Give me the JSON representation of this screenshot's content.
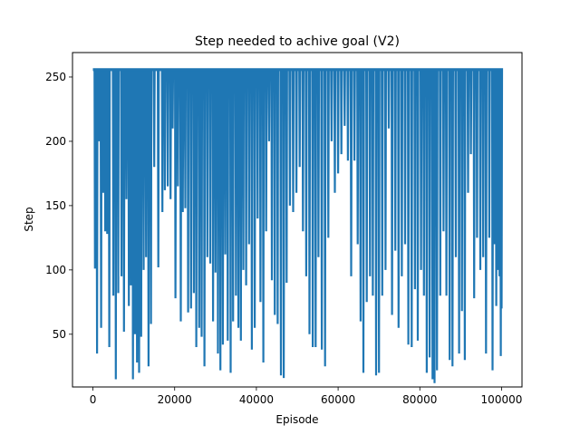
{
  "chart_data": {
    "type": "line",
    "title": "Step needed to achive goal (V2)",
    "xlabel": "Episode",
    "ylabel": "Step",
    "xlim": [
      -5000,
      105000
    ],
    "ylim": [
      9,
      269
    ],
    "x_ticks": [
      0,
      20000,
      40000,
      60000,
      80000,
      100000
    ],
    "x_tick_labels": [
      "0",
      "20000",
      "40000",
      "60000",
      "80000",
      "100000"
    ],
    "y_ticks": [
      50,
      100,
      150,
      200,
      250
    ],
    "y_tick_labels": [
      "50",
      "100",
      "150",
      "200",
      "250"
    ],
    "grid": false,
    "legend": false,
    "series": [
      {
        "color": "#1f77b4",
        "baseline": 256,
        "x_range": [
          0,
          100000
        ],
        "dips": [
          [
            500,
            101
          ],
          [
            1000,
            35
          ],
          [
            1500,
            200
          ],
          [
            2000,
            55
          ],
          [
            2500,
            160
          ],
          [
            3000,
            130
          ],
          [
            3500,
            128
          ],
          [
            4000,
            40
          ],
          [
            5000,
            80
          ],
          [
            5600,
            15
          ],
          [
            6200,
            82
          ],
          [
            7000,
            95
          ],
          [
            7600,
            52
          ],
          [
            8200,
            155
          ],
          [
            8800,
            72
          ],
          [
            9300,
            88
          ],
          [
            9800,
            15
          ],
          [
            10300,
            50
          ],
          [
            10800,
            28
          ],
          [
            11300,
            20
          ],
          [
            11800,
            48
          ],
          [
            12400,
            100
          ],
          [
            13000,
            110
          ],
          [
            13600,
            25
          ],
          [
            14200,
            58
          ],
          [
            15000,
            180
          ],
          [
            16000,
            102
          ],
          [
            17000,
            145
          ],
          [
            17600,
            162
          ],
          [
            18300,
            165
          ],
          [
            19000,
            155
          ],
          [
            19500,
            210
          ],
          [
            20200,
            78
          ],
          [
            20800,
            165
          ],
          [
            21500,
            60
          ],
          [
            22000,
            145
          ],
          [
            22600,
            148
          ],
          [
            23300,
            67
          ],
          [
            24000,
            70
          ],
          [
            24700,
            82
          ],
          [
            25300,
            40
          ],
          [
            26000,
            55
          ],
          [
            26600,
            48
          ],
          [
            27300,
            25
          ],
          [
            28000,
            110
          ],
          [
            28700,
            105
          ],
          [
            29400,
            60
          ],
          [
            30000,
            98
          ],
          [
            30600,
            35
          ],
          [
            31200,
            22
          ],
          [
            31800,
            42
          ],
          [
            32400,
            112
          ],
          [
            33000,
            45
          ],
          [
            33700,
            20
          ],
          [
            34300,
            60
          ],
          [
            35000,
            80
          ],
          [
            35600,
            55
          ],
          [
            36200,
            45
          ],
          [
            36800,
            100
          ],
          [
            37500,
            88
          ],
          [
            38200,
            120
          ],
          [
            38900,
            38
          ],
          [
            39600,
            55
          ],
          [
            40300,
            140
          ],
          [
            41000,
            75
          ],
          [
            41700,
            28
          ],
          [
            42400,
            130
          ],
          [
            43100,
            200
          ],
          [
            43800,
            92
          ],
          [
            44500,
            65
          ],
          [
            45200,
            58
          ],
          [
            46000,
            18
          ],
          [
            46700,
            16
          ],
          [
            47400,
            90
          ],
          [
            48200,
            150
          ],
          [
            49000,
            145
          ],
          [
            49800,
            160
          ],
          [
            50600,
            180
          ],
          [
            51400,
            130
          ],
          [
            52200,
            95
          ],
          [
            53000,
            50
          ],
          [
            53800,
            40
          ],
          [
            54500,
            40
          ],
          [
            55200,
            110
          ],
          [
            56000,
            38
          ],
          [
            56800,
            25
          ],
          [
            57600,
            125
          ],
          [
            58400,
            200
          ],
          [
            59200,
            160
          ],
          [
            60000,
            175
          ],
          [
            60800,
            190
          ],
          [
            61600,
            212
          ],
          [
            62400,
            185
          ],
          [
            63200,
            95
          ],
          [
            64000,
            185
          ],
          [
            64800,
            120
          ],
          [
            65500,
            60
          ],
          [
            66200,
            20
          ],
          [
            67000,
            75
          ],
          [
            67800,
            95
          ],
          [
            68500,
            80
          ],
          [
            69300,
            18
          ],
          [
            70000,
            20
          ],
          [
            70800,
            80
          ],
          [
            71600,
            100
          ],
          [
            72400,
            210
          ],
          [
            73200,
            65
          ],
          [
            74000,
            115
          ],
          [
            74800,
            55
          ],
          [
            75600,
            95
          ],
          [
            76400,
            120
          ],
          [
            77200,
            42
          ],
          [
            78000,
            40
          ],
          [
            78800,
            85
          ],
          [
            79500,
            45
          ],
          [
            80300,
            100
          ],
          [
            81000,
            80
          ],
          [
            81700,
            20
          ],
          [
            82400,
            32
          ],
          [
            83100,
            15
          ],
          [
            83600,
            12
          ],
          [
            84200,
            22
          ],
          [
            85000,
            80
          ],
          [
            85800,
            130
          ],
          [
            86500,
            80
          ],
          [
            87300,
            30
          ],
          [
            88000,
            25
          ],
          [
            88800,
            110
          ],
          [
            89600,
            35
          ],
          [
            90300,
            68
          ],
          [
            91000,
            30
          ],
          [
            91800,
            160
          ],
          [
            92500,
            190
          ],
          [
            93300,
            78
          ],
          [
            94000,
            125
          ],
          [
            94800,
            100
          ],
          [
            95500,
            110
          ],
          [
            96200,
            35
          ],
          [
            97000,
            125
          ],
          [
            97800,
            22
          ],
          [
            98300,
            120
          ],
          [
            98700,
            72
          ],
          [
            99100,
            100
          ],
          [
            99500,
            95
          ],
          [
            99800,
            33
          ],
          [
            100000,
            70
          ]
        ]
      }
    ]
  }
}
